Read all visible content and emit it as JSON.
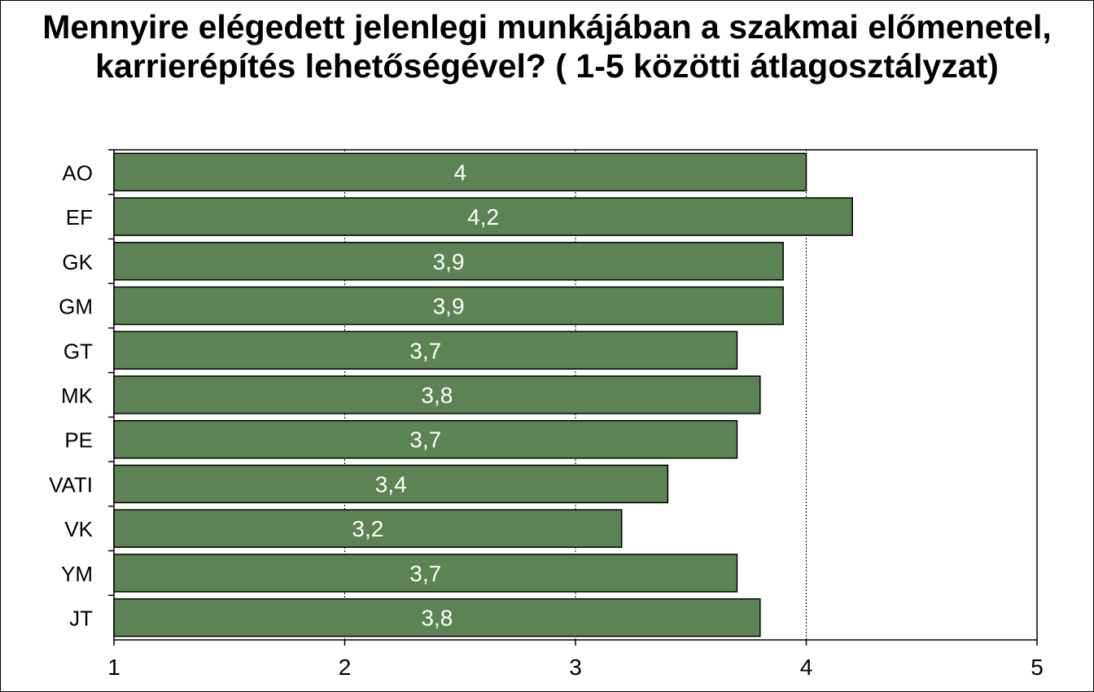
{
  "chart_data": {
    "type": "bar",
    "orientation": "horizontal",
    "title": "Mennyire elégedett jelenlegi munkájában a szakmai előmenetel, karrierépítés lehetőségével? ( 1-5 közötti átlagosztályzat)",
    "categories": [
      "AO",
      "EF",
      "GK",
      "GM",
      "GT",
      "MK",
      "PE",
      "VATI",
      "VK",
      "YM",
      "JT"
    ],
    "values": [
      4,
      4.2,
      3.9,
      3.9,
      3.7,
      3.8,
      3.7,
      3.4,
      3.2,
      3.7,
      3.8
    ],
    "value_labels": [
      "4",
      "4,2",
      "3,9",
      "3,9",
      "3,7",
      "3,8",
      "3,7",
      "3,4",
      "3,2",
      "3,7",
      "3,8"
    ],
    "xlim": [
      1,
      5
    ],
    "x_ticks": [
      1,
      2,
      3,
      4,
      5
    ],
    "x_tick_labels": [
      "1",
      "2",
      "3",
      "4",
      "5"
    ],
    "xlabel": "",
    "ylabel": "",
    "grid": "vertical dotted lines at major ticks",
    "legend": "none",
    "colors": {
      "bar_fill": "#5b8353",
      "bar_stroke": "#000000",
      "bar_label": "#ffffff",
      "gridline": "#000000",
      "background": "#ffffff"
    }
  }
}
